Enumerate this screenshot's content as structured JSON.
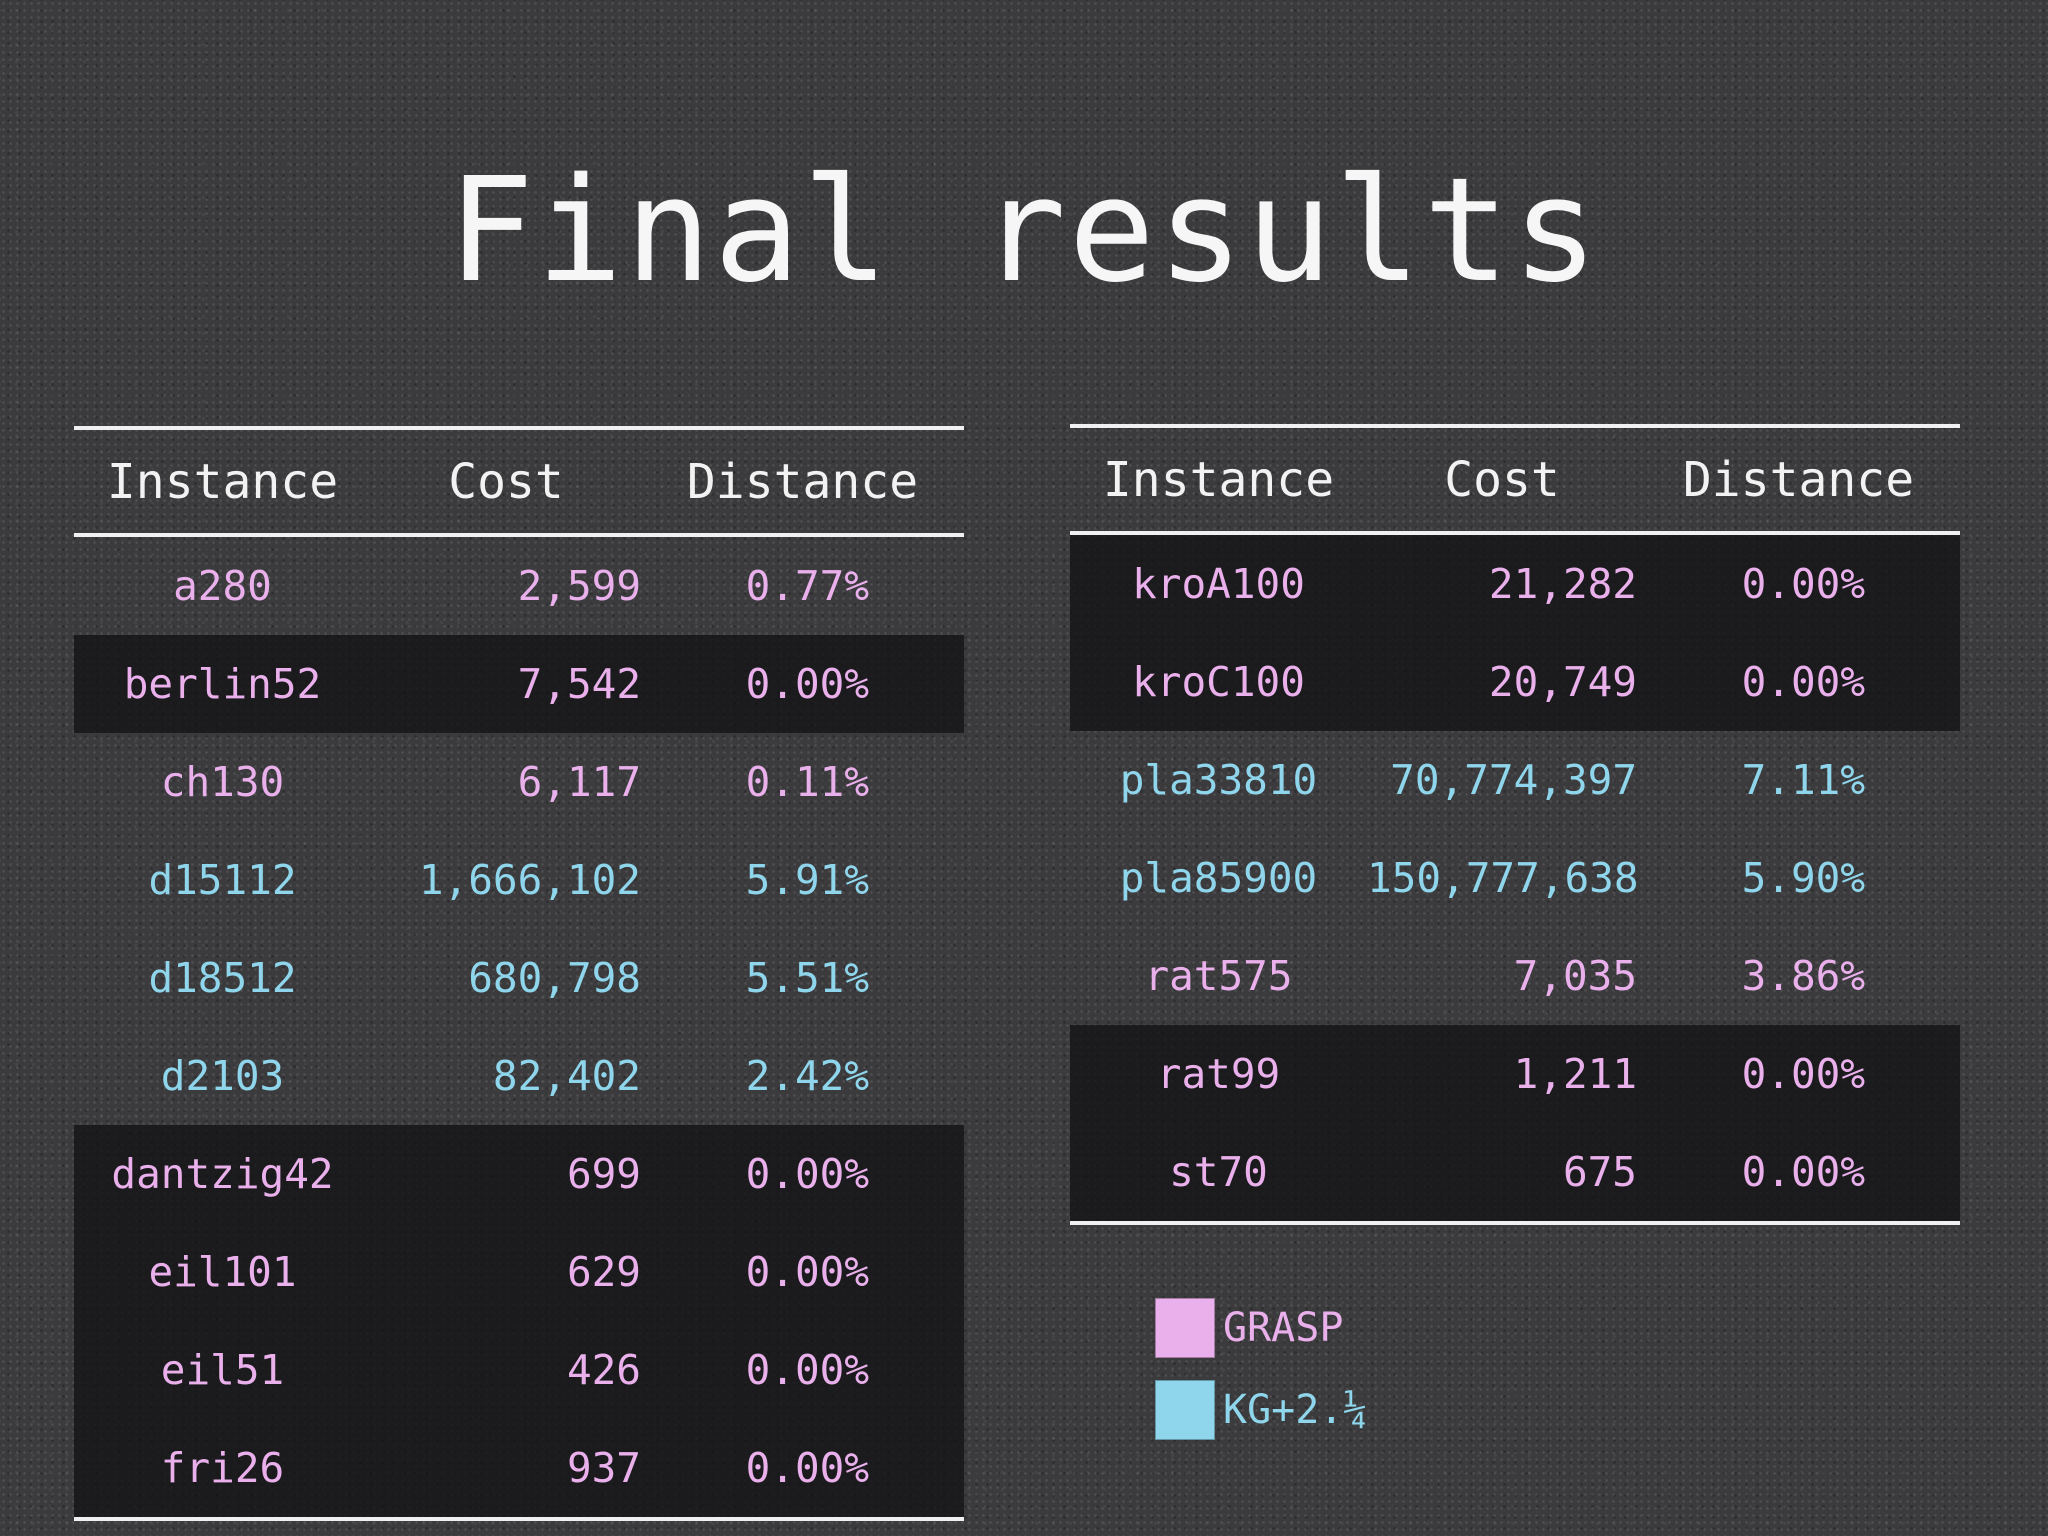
{
  "title": "Final results",
  "columns": [
    "Instance",
    "Cost",
    "Distance"
  ],
  "colors": {
    "grasp": "#e9b0ec",
    "kg": "#8fd6ec"
  },
  "left_table": {
    "rows": [
      {
        "instance": "a280",
        "cost": "2,599",
        "distance": "0.77%",
        "method": "grasp",
        "shaded": false
      },
      {
        "instance": "berlin52",
        "cost": "7,542",
        "distance": "0.00%",
        "method": "grasp",
        "shaded": true
      },
      {
        "instance": "ch130",
        "cost": "6,117",
        "distance": "0.11%",
        "method": "grasp",
        "shaded": false
      },
      {
        "instance": "d15112",
        "cost": "1,666,102",
        "distance": "5.91%",
        "method": "kg",
        "shaded": false
      },
      {
        "instance": "d18512",
        "cost": "680,798",
        "distance": "5.51%",
        "method": "kg",
        "shaded": false
      },
      {
        "instance": "d2103",
        "cost": "82,402",
        "distance": "2.42%",
        "method": "kg",
        "shaded": false
      },
      {
        "instance": "dantzig42",
        "cost": "699",
        "distance": "0.00%",
        "method": "grasp",
        "shaded": true
      },
      {
        "instance": "eil101",
        "cost": "629",
        "distance": "0.00%",
        "method": "grasp",
        "shaded": true
      },
      {
        "instance": "eil51",
        "cost": "426",
        "distance": "0.00%",
        "method": "grasp",
        "shaded": true
      },
      {
        "instance": "fri26",
        "cost": "937",
        "distance": "0.00%",
        "method": "grasp",
        "shaded": true
      }
    ]
  },
  "right_table": {
    "rows": [
      {
        "instance": "kroA100",
        "cost": "21,282",
        "distance": "0.00%",
        "method": "grasp",
        "shaded": true
      },
      {
        "instance": "kroC100",
        "cost": "20,749",
        "distance": "0.00%",
        "method": "grasp",
        "shaded": true
      },
      {
        "instance": "pla33810",
        "cost": "70,774,397",
        "distance": "7.11%",
        "method": "kg",
        "shaded": false
      },
      {
        "instance": "pla85900",
        "cost": "150,777,638",
        "distance": "5.90%",
        "method": "kg",
        "shaded": false
      },
      {
        "instance": "rat575",
        "cost": "7,035",
        "distance": "3.86%",
        "method": "grasp",
        "shaded": false
      },
      {
        "instance": "rat99",
        "cost": "1,211",
        "distance": "0.00%",
        "method": "grasp",
        "shaded": true
      },
      {
        "instance": "st70",
        "cost": "675",
        "distance": "0.00%",
        "method": "grasp",
        "shaded": true
      }
    ]
  },
  "legend": [
    {
      "label": "GRASP",
      "color": "#e9b0ec"
    },
    {
      "label": "KG+2.¼",
      "color": "#8fd6ec"
    }
  ]
}
